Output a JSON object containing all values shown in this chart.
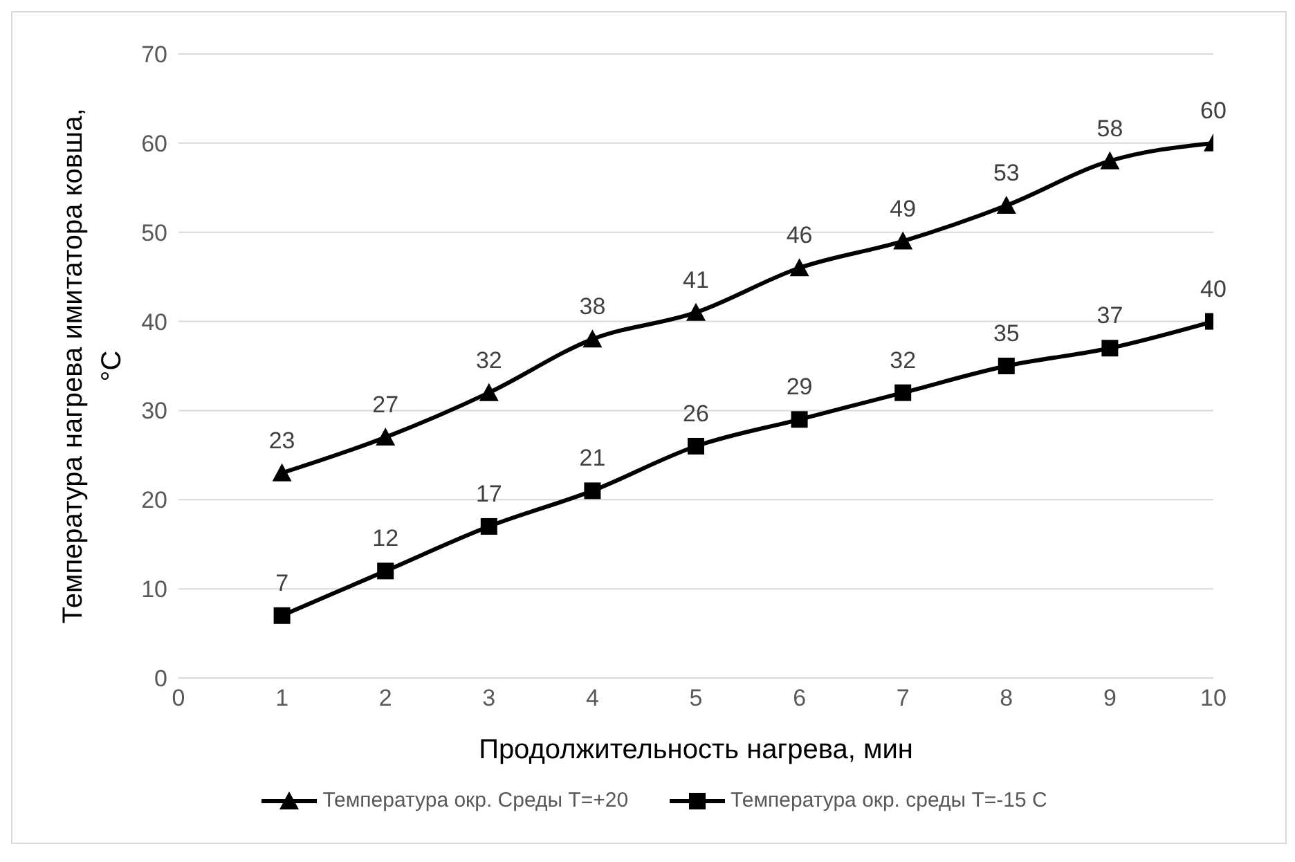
{
  "chart_data": {
    "type": "line",
    "xlabel": "Продолжительность нагрева, мин",
    "ylabel": "Температура нагрева имитатора ковша, °С",
    "x": [
      1,
      2,
      3,
      4,
      5,
      6,
      7,
      8,
      9,
      10
    ],
    "series": [
      {
        "name": "Температура окр. Среды Т=+20",
        "color": "#000000",
        "marker": "triangle",
        "values": [
          23,
          27,
          32,
          38,
          41,
          46,
          49,
          53,
          58,
          60
        ]
      },
      {
        "name": "Температура окр. среды Т=-15 С",
        "color": "#000000",
        "marker": "square",
        "values": [
          7,
          12,
          17,
          21,
          26,
          29,
          32,
          35,
          37,
          40
        ]
      }
    ],
    "xlim": [
      0,
      10
    ],
    "xticks": [
      0,
      1,
      2,
      3,
      4,
      5,
      6,
      7,
      8,
      9,
      10
    ],
    "ylim": [
      0,
      70
    ],
    "yticks": [
      0,
      10,
      20,
      30,
      40,
      50,
      60,
      70
    ],
    "grid": "y",
    "legend": "bottom",
    "data_labels": true,
    "line_style": "solid"
  }
}
